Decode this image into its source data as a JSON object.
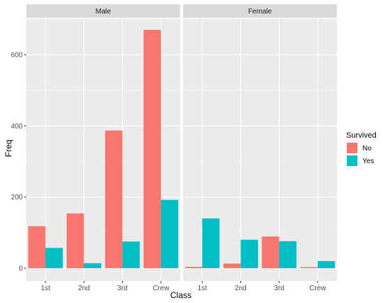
{
  "chart_data": {
    "type": "bar",
    "xlabel": "Class",
    "ylabel": "Freq",
    "ylim": [
      0,
      700
    ],
    "yticks": [
      0,
      200,
      400,
      600
    ],
    "categories": [
      "1st",
      "2nd",
      "3rd",
      "Crew"
    ],
    "facets": [
      {
        "label": "Male",
        "series": [
          {
            "name": "No",
            "values": [
              118,
              154,
              387,
              670
            ]
          },
          {
            "name": "Yes",
            "values": [
              57,
              14,
              75,
              192
            ]
          }
        ]
      },
      {
        "label": "Female",
        "series": [
          {
            "name": "No",
            "values": [
              4,
              13,
              89,
              3
            ]
          },
          {
            "name": "Yes",
            "values": [
              140,
              80,
              76,
              20
            ]
          }
        ]
      }
    ],
    "legend": {
      "title": "Survived",
      "position": "right",
      "entries": [
        {
          "label": "No",
          "color": "#F8766D"
        },
        {
          "label": "Yes",
          "color": "#00BFC4"
        }
      ]
    },
    "grid": true,
    "panel_background": "#EBEBEB",
    "strip_background": "#D9D9D9"
  }
}
